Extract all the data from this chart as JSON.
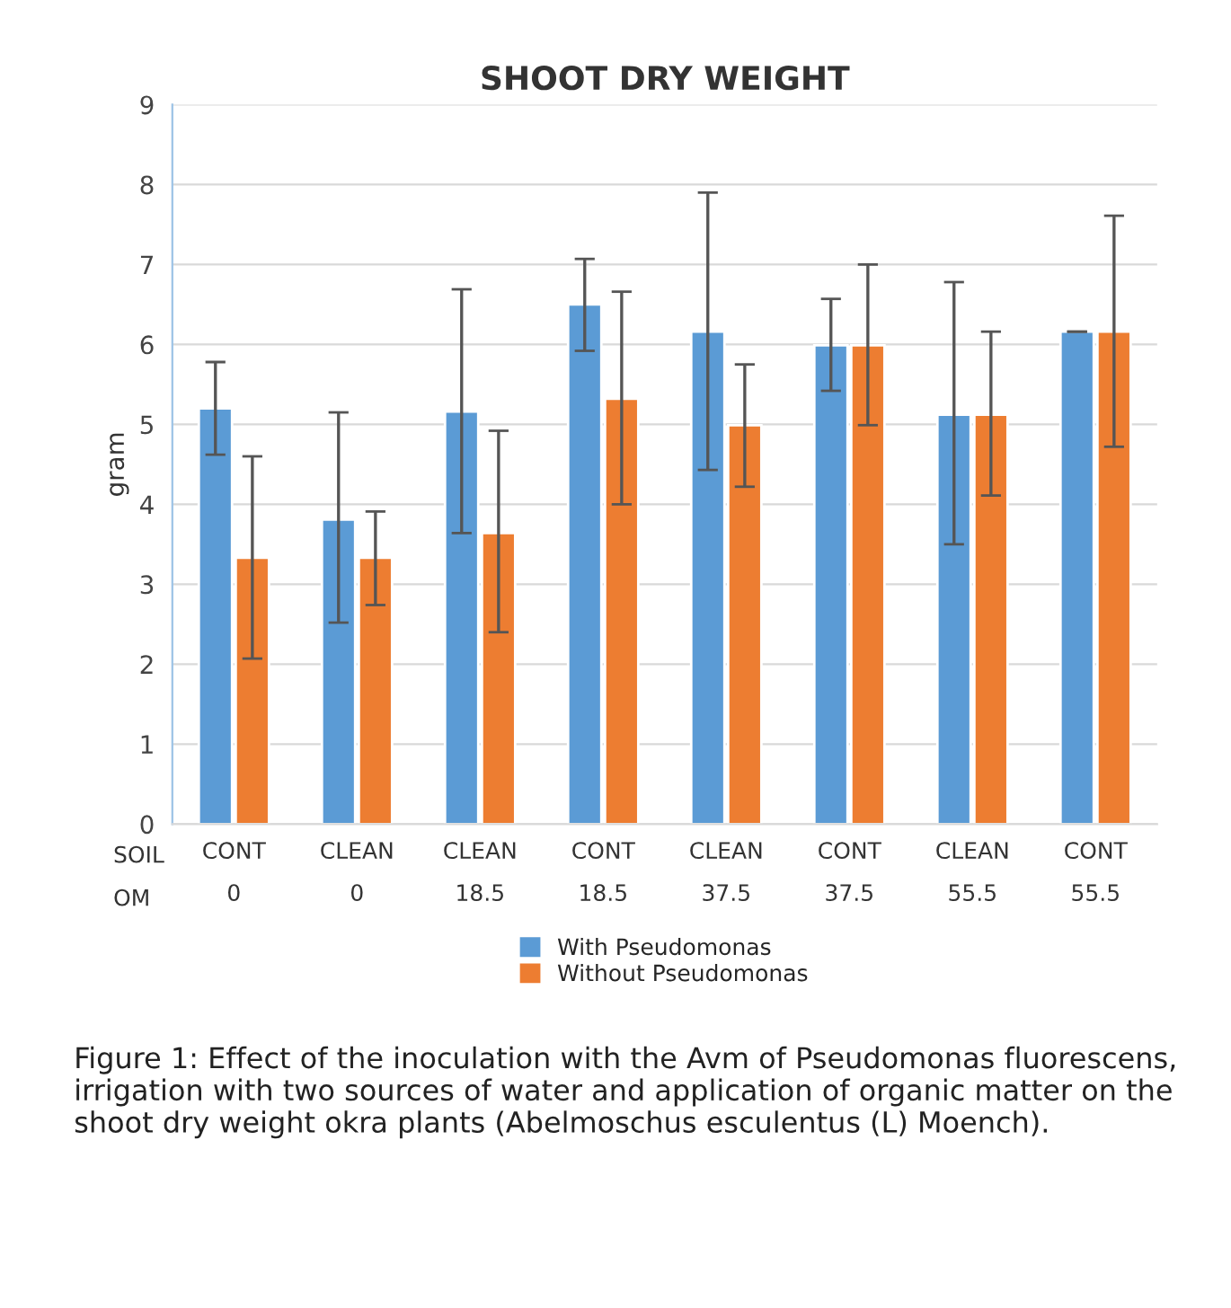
{
  "chart_data": {
    "type": "bar",
    "title": "SHOOT DRY WEIGHT",
    "ylabel": "gram",
    "categories": [
      "CONT\n0",
      "CLEAN\n0",
      "CLEAN\n18.5",
      "CONT\n18.5",
      "CLEAN\n37.5",
      "CONT\n37.5",
      "CLEAN\n55.5",
      "CONT\n55.5"
    ],
    "series": [
      {
        "name": "With Pseudomonas",
        "color": "#5b9bd5",
        "values": [
          5.2,
          3.81,
          5.16,
          6.5,
          6.16,
          5.99,
          5.12,
          6.16
        ],
        "errors": [
          [
            4.62,
            5.78
          ],
          [
            2.52,
            5.15
          ],
          [
            3.64,
            6.69
          ],
          [
            5.92,
            7.07
          ],
          [
            4.43,
            7.9
          ],
          [
            5.42,
            6.57
          ],
          [
            3.5,
            6.78
          ],
          [
            6.16,
            6.16
          ]
        ]
      },
      {
        "name": "Without Pseudomonas",
        "color": "#ed7d31",
        "values": [
          3.33,
          3.33,
          3.64,
          5.32,
          4.99,
          5.99,
          5.12,
          6.16
        ],
        "errors": [
          [
            2.07,
            4.6
          ],
          [
            2.74,
            3.91
          ],
          [
            2.4,
            4.92
          ],
          [
            4.0,
            6.66
          ],
          [
            4.22,
            5.75
          ],
          [
            4.99,
            7.0
          ],
          [
            4.11,
            6.16
          ],
          [
            4.72,
            7.61
          ]
        ]
      }
    ],
    "ylim": [
      0,
      9
    ],
    "yticks": [
      0,
      1,
      2,
      3,
      4,
      5,
      6,
      7,
      8,
      9
    ],
    "grid": "y",
    "legend": "bottom",
    "annotations": [
      "SOIL",
      "OM",
      "Figure 1: Effect of the inoculation with the Avm of Pseudomonas fluorescens, irrigation with two sources of water and application of organic matter on the shoot dry weight okra plants (Abelmoschus esculentus (L) Moench)."
    ]
  }
}
